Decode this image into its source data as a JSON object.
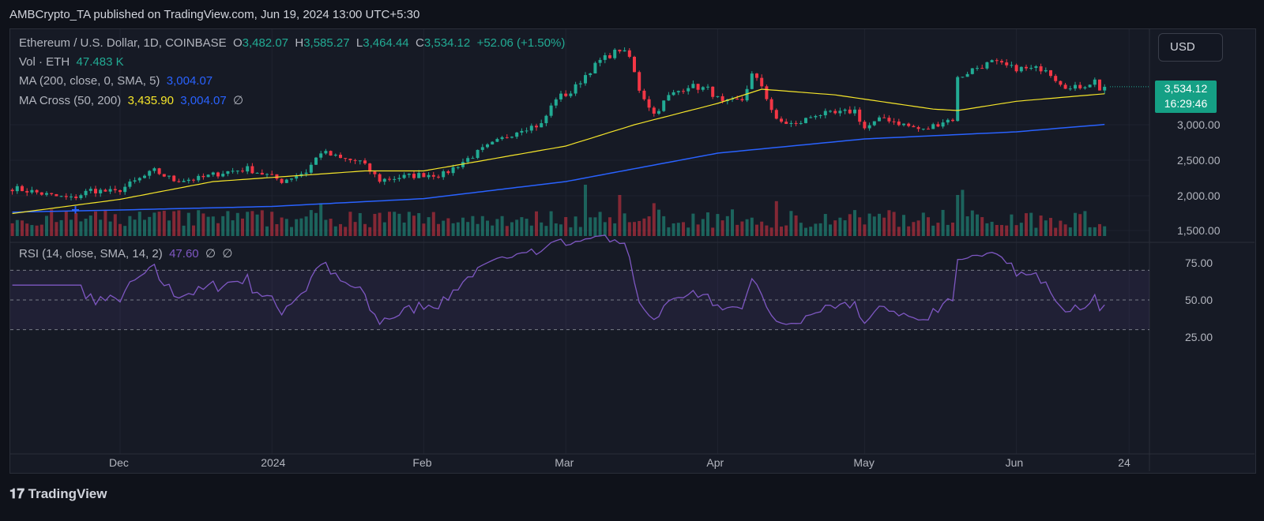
{
  "publish_line": "AMBCrypto_TA published on TradingView.com, Jun 19, 2024 13:00 UTC+5:30",
  "legend": {
    "symbol": "Ethereum / U.S. Dollar, 1D, COINBASE",
    "o_label": "O",
    "open": "3,482.07",
    "h_label": "H",
    "high": "3,585.27",
    "l_label": "L",
    "low": "3,464.44",
    "c_label": "C",
    "close": "3,534.12",
    "change": "+52.06 (+1.50%)",
    "vol_label": "Vol · ETH",
    "vol_value": "47.483 K",
    "ma_label": "MA (200, close, 0, SMA, 5)",
    "ma_value": "3,004.07",
    "macross_label": "MA Cross (50, 200)",
    "macross_fast": "3,435.90",
    "macross_slow": "3,004.07",
    "macross_extra": "∅",
    "rsi_label": "RSI (14, close, SMA, 14, 2)",
    "rsi_value": "47.60",
    "rsi_extra1": "∅",
    "rsi_extra2": "∅"
  },
  "currency_button": "USD",
  "last_price": {
    "price": "3,534.12",
    "countdown": "16:29:46"
  },
  "price_axis": [
    "3,000.00",
    "2,500.00",
    "2,000.00",
    "1,500.00"
  ],
  "rsi_axis": [
    "75.00",
    "50.00",
    "25.00"
  ],
  "time_axis": [
    {
      "label": "Dec",
      "date": "2023-12-01"
    },
    {
      "label": "2024",
      "date": "2024-01-01"
    },
    {
      "label": "Feb",
      "date": "2024-02-01"
    },
    {
      "label": "Mar",
      "date": "2024-03-01"
    },
    {
      "label": "Apr",
      "date": "2024-04-01"
    },
    {
      "label": "May",
      "date": "2024-05-01"
    },
    {
      "label": "Jun",
      "date": "2024-06-01"
    },
    {
      "label": "24",
      "date": "2024-06-24"
    }
  ],
  "footer_logo": "TradingView",
  "colors": {
    "up": "#22ab94",
    "down": "#f23645",
    "ma50": "#f5e52a",
    "ma200": "#2962ff",
    "rsi": "#7e57c2",
    "background": "#161a25"
  },
  "chart_data": {
    "type": "candlestick",
    "price_range": [
      1500,
      4200
    ],
    "rsi_range": [
      25,
      75
    ],
    "rsi_bands": [
      30,
      50,
      70
    ],
    "close_keypoints": [
      [
        "2023-11-09",
        2110
      ],
      [
        "2023-11-13",
        2060
      ],
      [
        "2023-11-17",
        2000
      ],
      [
        "2023-11-21",
        1960
      ],
      [
        "2023-11-25",
        2080
      ],
      [
        "2023-11-30",
        2050
      ],
      [
        "2023-12-04",
        2200
      ],
      [
        "2023-12-08",
        2350
      ],
      [
        "2023-12-12",
        2220
      ],
      [
        "2023-12-17",
        2240
      ],
      [
        "2023-12-22",
        2330
      ],
      [
        "2023-12-27",
        2380
      ],
      [
        "2023-12-31",
        2290
      ],
      [
        "2024-01-03",
        2210
      ],
      [
        "2024-01-08",
        2340
      ],
      [
        "2024-01-11",
        2620
      ],
      [
        "2024-01-15",
        2520
      ],
      [
        "2024-01-19",
        2480
      ],
      [
        "2024-01-23",
        2220
      ],
      [
        "2024-01-27",
        2260
      ],
      [
        "2024-02-01",
        2300
      ],
      [
        "2024-02-05",
        2300
      ],
      [
        "2024-02-09",
        2480
      ],
      [
        "2024-02-13",
        2650
      ],
      [
        "2024-02-17",
        2800
      ],
      [
        "2024-02-21",
        2950
      ],
      [
        "2024-02-25",
        3000
      ],
      [
        "2024-02-28",
        3380
      ],
      [
        "2024-03-02",
        3450
      ],
      [
        "2024-03-05",
        3700
      ],
      [
        "2024-03-08",
        3900
      ],
      [
        "2024-03-12",
        4060
      ],
      [
        "2024-03-14",
        3950
      ],
      [
        "2024-03-16",
        3500
      ],
      [
        "2024-03-19",
        3150
      ],
      [
        "2024-03-22",
        3400
      ],
      [
        "2024-03-26",
        3550
      ],
      [
        "2024-03-30",
        3500
      ],
      [
        "2024-04-02",
        3300
      ],
      [
        "2024-04-06",
        3350
      ],
      [
        "2024-04-08",
        3700
      ],
      [
        "2024-04-10",
        3550
      ],
      [
        "2024-04-13",
        3050
      ],
      [
        "2024-04-17",
        3000
      ],
      [
        "2024-04-21",
        3150
      ],
      [
        "2024-04-25",
        3150
      ],
      [
        "2024-04-29",
        3200
      ],
      [
        "2024-05-01",
        2950
      ],
      [
        "2024-05-05",
        3100
      ],
      [
        "2024-05-09",
        3000
      ],
      [
        "2024-05-13",
        2920
      ],
      [
        "2024-05-17",
        3050
      ],
      [
        "2024-05-19",
        3080
      ],
      [
        "2024-05-20",
        3650
      ],
      [
        "2024-05-23",
        3780
      ],
      [
        "2024-05-27",
        3880
      ],
      [
        "2024-05-31",
        3800
      ],
      [
        "2024-06-04",
        3780
      ],
      [
        "2024-06-07",
        3800
      ],
      [
        "2024-06-09",
        3650
      ],
      [
        "2024-06-12",
        3500
      ],
      [
        "2024-06-15",
        3560
      ],
      [
        "2024-06-17",
        3620
      ],
      [
        "2024-06-18",
        3482.07
      ],
      [
        "2024-06-19",
        3534.12
      ]
    ],
    "ma50_keypoints": [
      [
        "2023-11-09",
        1750
      ],
      [
        "2023-12-01",
        1950
      ],
      [
        "2023-12-20",
        2200
      ],
      [
        "2024-01-20",
        2350
      ],
      [
        "2024-02-01",
        2350
      ],
      [
        "2024-03-01",
        2700
      ],
      [
        "2024-03-15",
        3000
      ],
      [
        "2024-04-01",
        3300
      ],
      [
        "2024-04-10",
        3500
      ],
      [
        "2024-04-25",
        3420
      ],
      [
        "2024-05-15",
        3220
      ],
      [
        "2024-05-20",
        3200
      ],
      [
        "2024-06-01",
        3330
      ],
      [
        "2024-06-19",
        3435.9
      ]
    ],
    "ma200_keypoints": [
      [
        "2023-11-09",
        1770
      ],
      [
        "2023-12-01",
        1800
      ],
      [
        "2024-01-01",
        1850
      ],
      [
        "2024-02-01",
        1960
      ],
      [
        "2024-03-01",
        2200
      ],
      [
        "2024-04-01",
        2600
      ],
      [
        "2024-05-01",
        2800
      ],
      [
        "2024-06-01",
        2900
      ],
      [
        "2024-06-19",
        3004.07
      ]
    ],
    "cross_marker": {
      "date": "2023-11-22",
      "price": 1800
    },
    "volume_spikes_k": [
      [
        "2024-01-11",
        160
      ],
      [
        "2024-03-05",
        250
      ],
      [
        "2024-03-12",
        200
      ],
      [
        "2024-03-19",
        160
      ],
      [
        "2024-04-13",
        170
      ],
      [
        "2024-05-20",
        200
      ],
      [
        "2024-05-21",
        225
      ]
    ],
    "last_volume_k": 47.483
  }
}
